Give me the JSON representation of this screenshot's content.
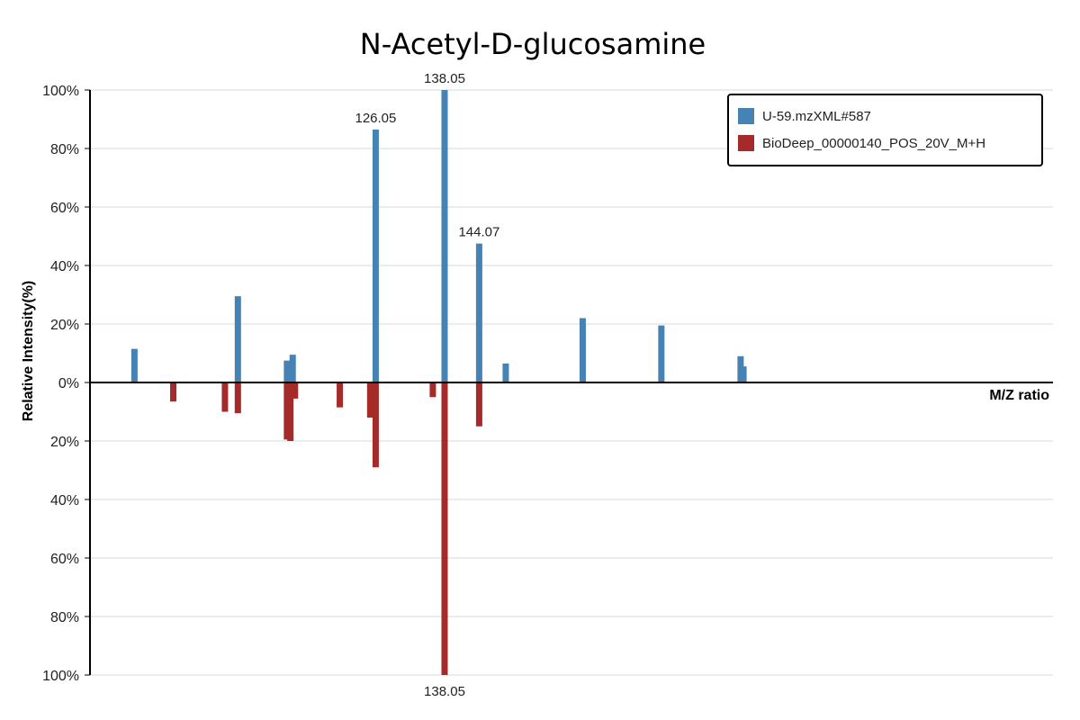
{
  "chart_data": {
    "type": "bar",
    "title": "N-Acetyl-D-glucosamine",
    "xlabel": "M/Z ratio",
    "ylabel": "Relative Intensity(%)",
    "y_ticks_top": [
      "100%",
      "80%",
      "60%",
      "40%",
      "20%",
      "0%"
    ],
    "y_ticks_bottom": [
      "20%",
      "40%",
      "60%",
      "80%",
      "100%"
    ],
    "ylim": [
      -100,
      100
    ],
    "grid": "horizontal",
    "legend_position": "top-right",
    "series": [
      {
        "name": "U-59.mzXML#587",
        "color": "#4682b4",
        "direction": "up",
        "peaks": [
          {
            "mz": 84.04,
            "intensity": 11.5
          },
          {
            "mz": 102.05,
            "intensity": 29.5
          },
          {
            "mz": 110.6,
            "intensity": 7.5
          },
          {
            "mz": 111.0,
            "intensity": 5.5
          },
          {
            "mz": 111.6,
            "intensity": 9.5
          },
          {
            "mz": 126.05,
            "intensity": 86.5,
            "label": "126.05"
          },
          {
            "mz": 138.05,
            "intensity": 100,
            "label": "138.05"
          },
          {
            "mz": 144.07,
            "intensity": 47.5,
            "label": "144.07"
          },
          {
            "mz": 148.7,
            "intensity": 6.5
          },
          {
            "mz": 162.1,
            "intensity": 22.0
          },
          {
            "mz": 175.8,
            "intensity": 19.5
          },
          {
            "mz": 189.6,
            "intensity": 9.0
          },
          {
            "mz": 190.1,
            "intensity": 5.5
          }
        ]
      },
      {
        "name": "BioDeep_00000140_POS_20V_M+H",
        "color": "#a52a2a",
        "direction": "down",
        "peaks": [
          {
            "mz": 90.8,
            "intensity": 6.5
          },
          {
            "mz": 99.8,
            "intensity": 10.0
          },
          {
            "mz": 102.05,
            "intensity": 10.5
          },
          {
            "mz": 110.6,
            "intensity": 19.5
          },
          {
            "mz": 111.2,
            "intensity": 20.0
          },
          {
            "mz": 112.0,
            "intensity": 5.5
          },
          {
            "mz": 119.8,
            "intensity": 8.5
          },
          {
            "mz": 125.1,
            "intensity": 12.0
          },
          {
            "mz": 126.05,
            "intensity": 29.0
          },
          {
            "mz": 136.0,
            "intensity": 5.0
          },
          {
            "mz": 138.05,
            "intensity": 100,
            "label": "138.05"
          },
          {
            "mz": 144.07,
            "intensity": 15.0
          }
        ]
      }
    ],
    "xlim": [
      76.3,
      244.0
    ]
  }
}
